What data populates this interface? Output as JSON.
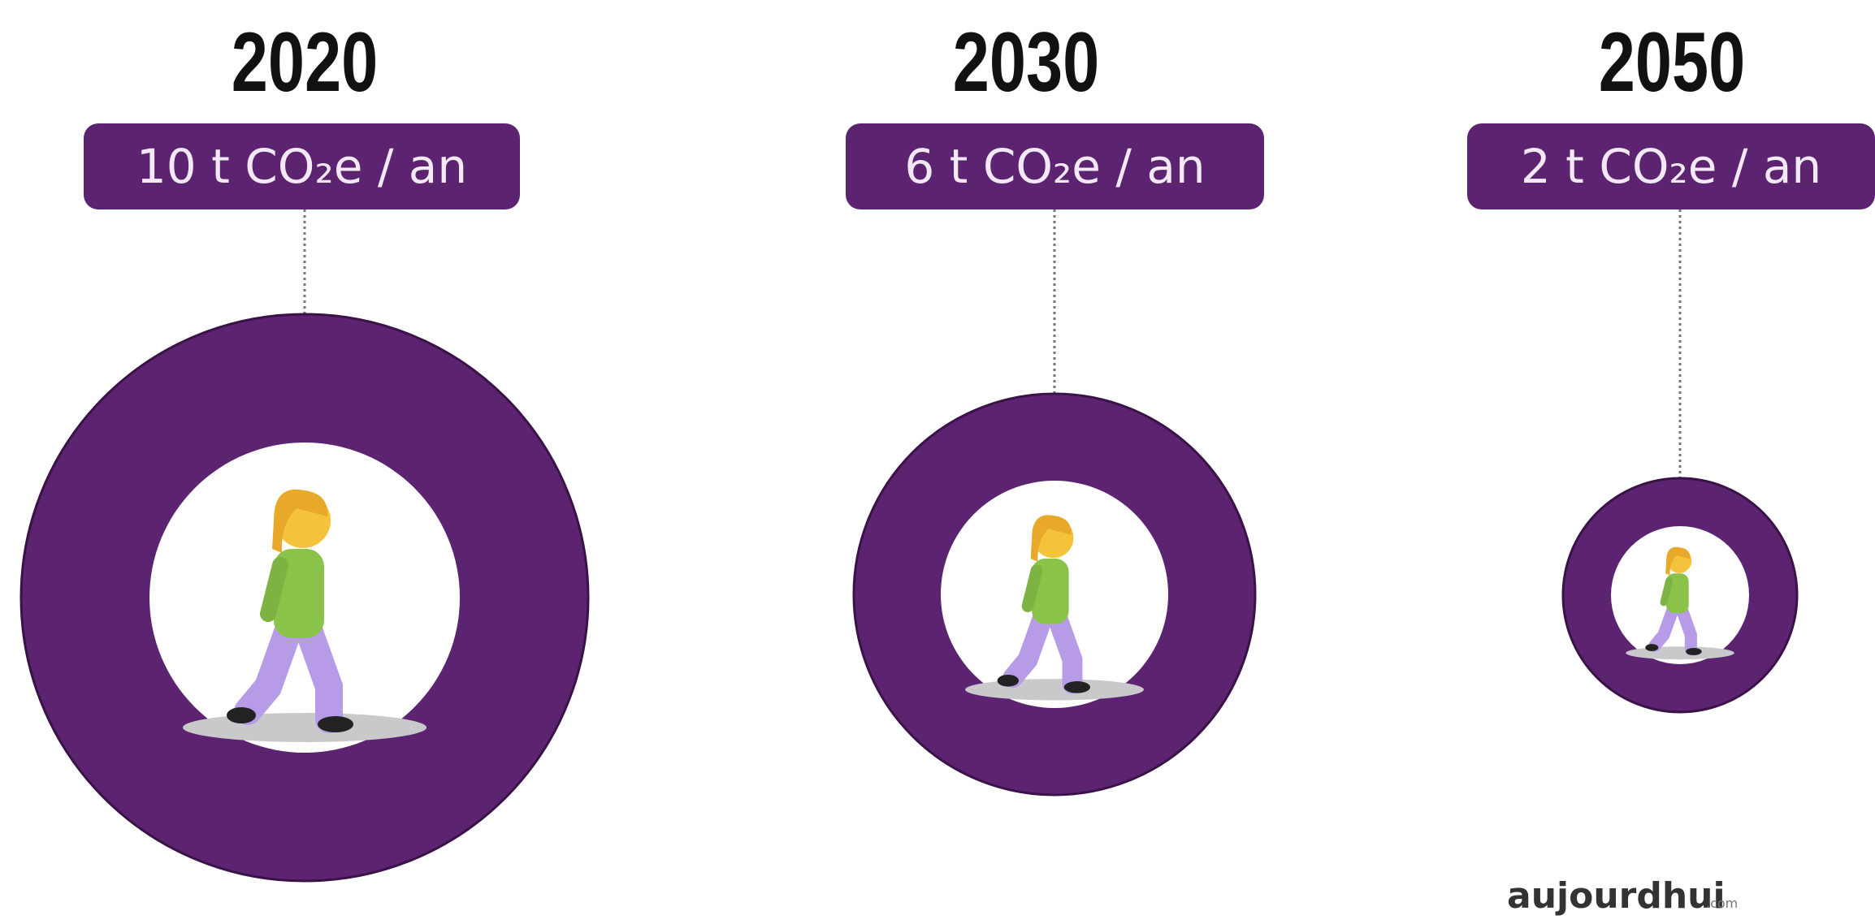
{
  "items": [
    {
      "year": "2020",
      "label": "10 t CO₂e / an"
    },
    {
      "year": "2030",
      "label": "6 t CO₂e / an"
    },
    {
      "year": "2050",
      "label": "2 t CO₂e / an"
    }
  ],
  "logo": {
    "name": "aujourdhui",
    "suffix": ".com"
  }
}
